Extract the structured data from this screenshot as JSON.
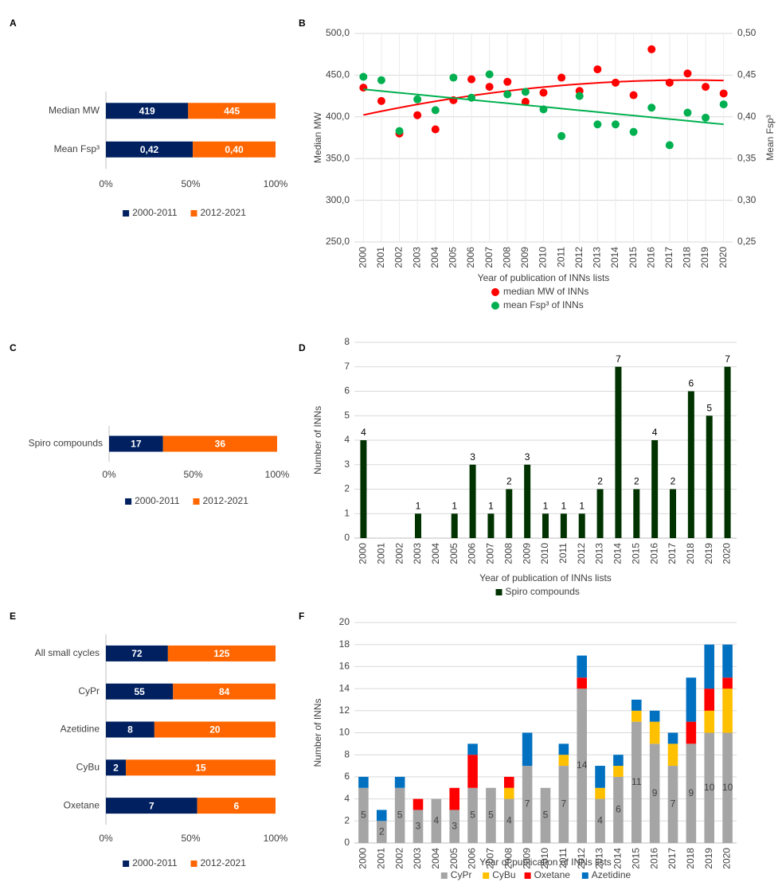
{
  "chart_data": [
    {
      "panel": "A",
      "type": "bar",
      "orientation": "horizontal",
      "stacked": "percent",
      "categories": [
        "Median MW",
        "Mean Fsp³"
      ],
      "series": [
        {
          "name": "2000-2011",
          "color": "#002060",
          "values": [
            419,
            0.42
          ],
          "value_labels": [
            "419",
            "0,42"
          ]
        },
        {
          "name": "2012-2021",
          "color": "#ff6600",
          "values": [
            445,
            0.4
          ],
          "value_labels": [
            "445",
            "0,40"
          ]
        }
      ],
      "xlim": [
        0,
        100
      ],
      "xticks": [
        {
          "value": 0,
          "label": "0%"
        },
        {
          "value": 50,
          "label": "50%"
        },
        {
          "value": 100,
          "label": "100%"
        }
      ],
      "legend": "bottom"
    },
    {
      "panel": "B",
      "type": "scatter",
      "categories": [
        "2000",
        "2001",
        "2002",
        "2003",
        "2004",
        "2005",
        "2006",
        "2007",
        "2008",
        "2009",
        "2010",
        "2011",
        "2012",
        "2013",
        "2014",
        "2015",
        "2016",
        "2017",
        "2018",
        "2019",
        "2020"
      ],
      "xlabel": "Year of publication of INNs lists",
      "ylabel": "Median MW",
      "y2label": "Mean Fsp³",
      "series": [
        {
          "name": "median MW of INNs",
          "color": "#ff0000",
          "trendline": "polynomial",
          "values": [
            435,
            419,
            380,
            402,
            385,
            420,
            445,
            436,
            442,
            418,
            429,
            447,
            431,
            457,
            441,
            426,
            481,
            441,
            452,
            436,
            428
          ]
        },
        {
          "name": "mean Fsp³ of INNs",
          "color": "#00b050",
          "axis": "y2",
          "trendline": "linear",
          "values": [
            0.448,
            0.444,
            0.383,
            0.421,
            0.408,
            0.447,
            0.423,
            0.451,
            0.427,
            0.43,
            0.409,
            0.377,
            0.425,
            0.391,
            0.391,
            0.382,
            0.411,
            0.366,
            0.405,
            0.399,
            0.415
          ]
        }
      ],
      "ylim": [
        250,
        500
      ],
      "yticks": [
        {
          "value": 250,
          "label": "250,0"
        },
        {
          "value": 300,
          "label": "300,0"
        },
        {
          "value": 350,
          "label": "350,0"
        },
        {
          "value": 400,
          "label": "400,0"
        },
        {
          "value": 450,
          "label": "450,0"
        },
        {
          "value": 500,
          "label": "500,0"
        }
      ],
      "y2lim": [
        0.25,
        0.5
      ],
      "y2ticks": [
        {
          "value": 0.25,
          "label": "0,25"
        },
        {
          "value": 0.3,
          "label": "0,30"
        },
        {
          "value": 0.35,
          "label": "0,35"
        },
        {
          "value": 0.4,
          "label": "0,40"
        },
        {
          "value": 0.45,
          "label": "0,45"
        },
        {
          "value": 0.5,
          "label": "0,50"
        }
      ],
      "grid": true,
      "legend": "bottom"
    },
    {
      "panel": "C",
      "type": "bar",
      "orientation": "horizontal",
      "stacked": "percent",
      "categories": [
        "Spiro compounds"
      ],
      "series": [
        {
          "name": "2000-2011",
          "color": "#002060",
          "values": [
            17
          ]
        },
        {
          "name": "2012-2021",
          "color": "#ff6600",
          "values": [
            36
          ]
        }
      ],
      "xlim": [
        0,
        100
      ],
      "xticks": [
        {
          "value": 0,
          "label": "0%"
        },
        {
          "value": 50,
          "label": "50%"
        },
        {
          "value": 100,
          "label": "100%"
        }
      ],
      "legend": "bottom"
    },
    {
      "panel": "D",
      "type": "bar",
      "data_labels": true,
      "categories": [
        "2000",
        "2001",
        "2002",
        "2003",
        "2004",
        "2005",
        "2006",
        "2007",
        "2008",
        "2009",
        "2010",
        "2011",
        "2012",
        "2013",
        "2014",
        "2015",
        "2016",
        "2017",
        "2018",
        "2019",
        "2020"
      ],
      "xlabel": "Year of publication of INNs lists",
      "ylabel": "Number of INNs",
      "series": [
        {
          "name": "Spiro compounds",
          "color": "#003300",
          "values": [
            4,
            0,
            0,
            1,
            0,
            1,
            3,
            1,
            2,
            3,
            1,
            1,
            1,
            2,
            7,
            2,
            4,
            2,
            6,
            5,
            7
          ]
        }
      ],
      "ylim": [
        0,
        8
      ],
      "yticks": [
        0,
        1,
        2,
        3,
        4,
        5,
        6,
        7,
        8
      ],
      "grid": true,
      "legend": "bottom"
    },
    {
      "panel": "E",
      "type": "bar",
      "orientation": "horizontal",
      "stacked": "percent",
      "categories": [
        "All small cycles",
        "CyPr",
        "Azetidine",
        "CyBu",
        "Oxetane"
      ],
      "series": [
        {
          "name": "2000-2011",
          "color": "#002060",
          "values": [
            72,
            55,
            8,
            2,
            7
          ]
        },
        {
          "name": "2012-2021",
          "color": "#ff6600",
          "values": [
            125,
            84,
            20,
            15,
            6
          ]
        }
      ],
      "xlim": [
        0,
        100
      ],
      "xticks": [
        {
          "value": 0,
          "label": "0%"
        },
        {
          "value": 50,
          "label": "50%"
        },
        {
          "value": 100,
          "label": "100%"
        }
      ],
      "legend": "bottom"
    },
    {
      "panel": "F",
      "type": "bar",
      "stacked": true,
      "categories": [
        "2000",
        "2001",
        "2002",
        "2003",
        "2004",
        "2005",
        "2006",
        "2007",
        "2008",
        "2009",
        "2010",
        "2011",
        "2012",
        "2013",
        "2014",
        "2015",
        "2016",
        "2017",
        "2018",
        "2019",
        "2020"
      ],
      "xlabel": "Year of publication of INNs lists",
      "ylabel": "Number of INNs",
      "series": [
        {
          "name": "CyPr",
          "color": "#a5a5a5",
          "data_labels": true,
          "values": [
            5,
            2,
            5,
            3,
            4,
            3,
            5,
            5,
            4,
            7,
            5,
            7,
            14,
            4,
            6,
            11,
            9,
            7,
            9,
            10,
            10
          ]
        },
        {
          "name": "CyBu",
          "color": "#ffc000",
          "values": [
            0,
            0,
            0,
            0,
            0,
            0,
            0,
            0,
            1,
            0,
            0,
            1,
            0,
            1,
            1,
            1,
            2,
            2,
            0,
            2,
            4
          ]
        },
        {
          "name": "Oxetane",
          "color": "#ff0000",
          "values": [
            0,
            0,
            0,
            1,
            0,
            2,
            3,
            0,
            1,
            0,
            0,
            0,
            1,
            0,
            0,
            0,
            0,
            0,
            2,
            2,
            1
          ]
        },
        {
          "name": "Azetidine",
          "color": "#0070c0",
          "values": [
            1,
            1,
            1,
            0,
            0,
            0,
            1,
            0,
            0,
            3,
            0,
            1,
            2,
            2,
            1,
            1,
            1,
            1,
            4,
            4,
            3
          ]
        }
      ],
      "ylim": [
        0,
        20
      ],
      "yticks": [
        0,
        2,
        4,
        6,
        8,
        10,
        12,
        14,
        16,
        18,
        20
      ],
      "grid": true,
      "legend": "bottom"
    }
  ]
}
